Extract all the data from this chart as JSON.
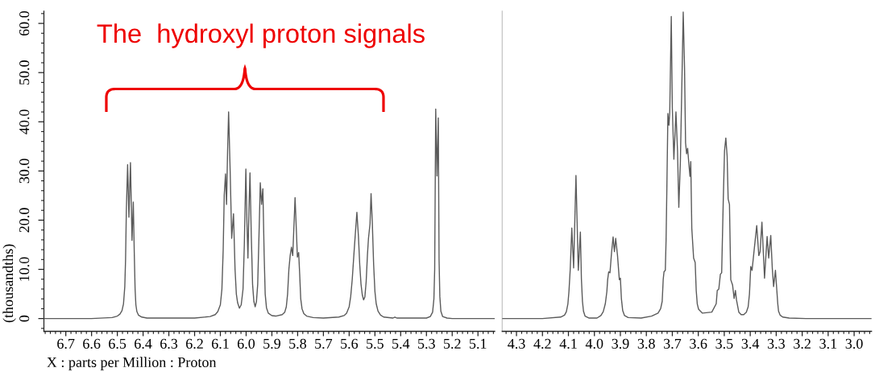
{
  "chart_data": [
    {
      "type": "line",
      "color": "#5a5a5a",
      "line_style": "solid",
      "xlabel": "X : parts per Million : Proton",
      "ylabel": "(thousandths)",
      "xlim": [
        6.785,
        5.035
      ],
      "ylim": [
        -2.6,
        62.5
      ],
      "xticks": [
        {
          "value": 6.78,
          "label": null
        },
        {
          "value": 6.76,
          "label": null
        },
        {
          "value": 6.74,
          "label": null
        },
        {
          "value": 6.72,
          "label": null
        },
        6.7,
        {
          "value": 6.68,
          "label": null
        },
        {
          "value": 6.66,
          "label": null
        },
        {
          "value": 6.64,
          "label": null
        },
        {
          "value": 6.62,
          "label": null
        },
        6.6,
        {
          "value": 6.58,
          "label": null
        },
        {
          "value": 6.56,
          "label": null
        },
        {
          "value": 6.54,
          "label": null
        },
        {
          "value": 6.52,
          "label": null
        },
        6.5,
        {
          "value": 6.48,
          "label": null
        },
        {
          "value": 6.46,
          "label": null
        },
        {
          "value": 6.44,
          "label": null
        },
        {
          "value": 6.42,
          "label": null
        },
        6.4,
        {
          "value": 6.38,
          "label": null
        },
        {
          "value": 6.36,
          "label": null
        },
        {
          "value": 6.34,
          "label": null
        },
        {
          "value": 6.32,
          "label": null
        },
        6.3,
        {
          "value": 6.28,
          "label": null
        },
        {
          "value": 6.26,
          "label": null
        },
        {
          "value": 6.24,
          "label": null
        },
        {
          "value": 6.22,
          "label": null
        },
        6.2,
        {
          "value": 6.18,
          "label": null
        },
        {
          "value": 6.16,
          "label": null
        },
        {
          "value": 6.14,
          "label": null
        },
        {
          "value": 6.12,
          "label": null
        },
        6.1,
        {
          "value": 6.08,
          "label": null
        },
        {
          "value": 6.06,
          "label": null
        },
        {
          "value": 6.04,
          "label": null
        },
        {
          "value": 6.02,
          "label": null
        },
        {
          "value": 6,
          "label": "6.0"
        },
        {
          "value": 5.98,
          "label": null
        },
        {
          "value": 5.96,
          "label": null
        },
        {
          "value": 5.94,
          "label": null
        },
        {
          "value": 5.92,
          "label": null
        },
        5.9,
        {
          "value": 5.88,
          "label": null
        },
        {
          "value": 5.86,
          "label": null
        },
        {
          "value": 5.84,
          "label": null
        },
        {
          "value": 5.82,
          "label": null
        },
        5.8,
        {
          "value": 5.78,
          "label": null
        },
        {
          "value": 5.76,
          "label": null
        },
        {
          "value": 5.74,
          "label": null
        },
        {
          "value": 5.72,
          "label": null
        },
        5.7,
        {
          "value": 5.68,
          "label": null
        },
        {
          "value": 5.66,
          "label": null
        },
        {
          "value": 5.64,
          "label": null
        },
        {
          "value": 5.62,
          "label": null
        },
        5.6,
        {
          "value": 5.58,
          "label": null
        },
        {
          "value": 5.56,
          "label": null
        },
        {
          "value": 5.54,
          "label": null
        },
        {
          "value": 5.52,
          "label": null
        },
        5.5,
        {
          "value": 5.48,
          "label": null
        },
        {
          "value": 5.46,
          "label": null
        },
        {
          "value": 5.44,
          "label": null
        },
        {
          "value": 5.42,
          "label": null
        },
        5.4,
        {
          "value": 5.38,
          "label": null
        },
        {
          "value": 5.36,
          "label": null
        },
        {
          "value": 5.34,
          "label": null
        },
        {
          "value": 5.32,
          "label": null
        },
        5.3,
        {
          "value": 5.28,
          "label": null
        },
        {
          "value": 5.26,
          "label": null
        },
        {
          "value": 5.24,
          "label": null
        },
        {
          "value": 5.22,
          "label": null
        },
        5.2,
        {
          "value": 5.18,
          "label": null
        },
        {
          "value": 5.16,
          "label": null
        },
        {
          "value": 5.14,
          "label": null
        },
        {
          "value": 5.12,
          "label": null
        },
        5.1,
        {
          "value": 5.08,
          "label": null
        },
        {
          "value": 5.06,
          "label": null
        },
        {
          "value": 5.04,
          "label": null
        }
      ],
      "yticks": [
        {
          "value": -2,
          "label": null
        },
        0,
        {
          "value": 2,
          "label": null
        },
        {
          "value": 4,
          "label": null
        },
        {
          "value": 6,
          "label": null
        },
        {
          "value": 8,
          "label": null
        },
        {
          "value": 10,
          "label": "10.0"
        },
        {
          "value": 12,
          "label": null
        },
        {
          "value": 14,
          "label": null
        },
        {
          "value": 16,
          "label": null
        },
        {
          "value": 18,
          "label": null
        },
        {
          "value": 20,
          "label": "20.0"
        },
        {
          "value": 22,
          "label": null
        },
        {
          "value": 24,
          "label": null
        },
        {
          "value": 26,
          "label": null
        },
        {
          "value": 28,
          "label": null
        },
        {
          "value": 30,
          "label": "30.0"
        },
        {
          "value": 32,
          "label": null
        },
        {
          "value": 34,
          "label": null
        },
        {
          "value": 36,
          "label": null
        },
        {
          "value": 38,
          "label": null
        },
        {
          "value": 40,
          "label": "40.0"
        },
        {
          "value": 42,
          "label": null
        },
        {
          "value": 44,
          "label": null
        },
        {
          "value": 46,
          "label": null
        },
        {
          "value": 48,
          "label": null
        },
        {
          "value": 50,
          "label": "50.0"
        },
        {
          "value": 52,
          "label": null
        },
        {
          "value": 54,
          "label": null
        },
        {
          "value": 56,
          "label": null
        },
        {
          "value": 58,
          "label": null
        },
        {
          "value": 60,
          "label": "60.0"
        },
        {
          "value": 62,
          "label": null
        }
      ],
      "annotations": [
        "The  hydroxyl proton signals"
      ],
      "x": [
        6.785,
        6.6,
        6.52,
        6.5,
        6.49,
        6.482,
        6.476,
        6.471,
        6.468,
        6.465,
        6.46,
        6.455,
        6.449,
        6.443,
        6.438,
        6.434,
        6.431,
        6.428,
        6.424,
        6.418,
        6.405,
        6.385,
        6.2,
        6.14,
        6.12,
        6.11,
        6.1,
        6.094,
        6.089,
        6.085,
        6.08,
        6.076,
        6.072,
        6.068,
        6.062,
        6.056,
        6.049,
        6.043,
        6.038,
        6.033,
        6.026,
        6.019,
        6.012,
        6.007,
        6.001,
        5.997,
        5.993,
        5.989,
        5.985,
        5.98,
        5.975,
        5.97,
        5.965,
        5.96,
        5.955,
        5.95,
        5.945,
        5.94,
        5.935,
        5.93,
        5.926,
        5.921,
        5.914,
        5.9,
        5.885,
        5.86,
        5.85,
        5.844,
        5.839,
        5.834,
        5.829,
        5.824,
        5.819,
        5.814,
        5.81,
        5.805,
        5.801,
        5.796,
        5.792,
        5.788,
        5.783,
        5.776,
        5.765,
        5.74,
        5.7,
        5.64,
        5.62,
        5.61,
        5.6,
        5.594,
        5.588,
        5.581,
        5.575,
        5.57,
        5.564,
        5.559,
        5.554,
        5.549,
        5.544,
        5.539,
        5.534,
        5.529,
        5.525,
        5.519,
        5.515,
        5.51,
        5.505,
        5.5,
        5.495,
        5.488,
        5.478,
        5.466,
        5.43,
        5.4225,
        5.415,
        5.3,
        5.285,
        5.276,
        5.271,
        5.268,
        5.264,
        5.259,
        5.254,
        5.251,
        5.248,
        5.244,
        5.237,
        5.22,
        5.2,
        5.035
      ],
      "values": [
        0,
        0,
        0.2,
        0.5,
        0.9,
        1.6,
        3.0,
        6.5,
        12.0,
        22.0,
        31.3,
        20.6,
        31.7,
        15.9,
        23.7,
        12.8,
        6.0,
        2.8,
        1.4,
        0.7,
        0.3,
        0.1,
        0.1,
        0.4,
        0.8,
        1.4,
        2.8,
        6.0,
        14.0,
        25.0,
        29.4,
        23.2,
        34.0,
        42.0,
        30.0,
        16.3,
        21.3,
        10.0,
        5.0,
        3.2,
        2.1,
        2.8,
        6.0,
        15.0,
        30.4,
        20.0,
        12.3,
        22.0,
        29.6,
        17.0,
        7.0,
        3.5,
        2.4,
        3.4,
        7.0,
        17.0,
        27.6,
        23.2,
        26.4,
        13.0,
        5.0,
        2.2,
        1.1,
        0.6,
        0.5,
        0.8,
        1.3,
        2.4,
        5.0,
        10.0,
        12.8,
        14.5,
        12.8,
        19.3,
        24.6,
        18.0,
        12.5,
        13.4,
        8.9,
        4.0,
        2.0,
        1.0,
        0.5,
        0.2,
        0.1,
        0.3,
        0.6,
        1.1,
        2.4,
        4.5,
        8.0,
        13.5,
        18.0,
        21.6,
        16.7,
        11.0,
        7.0,
        4.8,
        3.8,
        4.4,
        7.5,
        13.0,
        16.3,
        19.3,
        25.4,
        19.3,
        11.0,
        5.5,
        3.0,
        1.5,
        0.7,
        0.3,
        0.1,
        0.3,
        0.1,
        0.1,
        0.4,
        1.3,
        4.0,
        10.0,
        42.6,
        29.0,
        40.8,
        12.0,
        4.5,
        1.5,
        0.4,
        0.1,
        0,
        0
      ]
    },
    {
      "type": "line",
      "color": "#5a5a5a",
      "line_style": "solid",
      "tick_labels": "x",
      "xlim": [
        4.355,
        2.933
      ],
      "ylim": [
        -2.6,
        62.5
      ],
      "xticks": [
        {
          "value": 4.34,
          "label": null
        },
        {
          "value": 4.32,
          "label": null
        },
        4.3,
        {
          "value": 4.28,
          "label": null
        },
        {
          "value": 4.26,
          "label": null
        },
        {
          "value": 4.24,
          "label": null
        },
        {
          "value": 4.22,
          "label": null
        },
        4.2,
        {
          "value": 4.18,
          "label": null
        },
        {
          "value": 4.16,
          "label": null
        },
        {
          "value": 4.14,
          "label": null
        },
        {
          "value": 4.12,
          "label": null
        },
        4.1,
        {
          "value": 4.08,
          "label": null
        },
        {
          "value": 4.06,
          "label": null
        },
        {
          "value": 4.04,
          "label": null
        },
        {
          "value": 4.02,
          "label": null
        },
        {
          "value": 4,
          "label": "4.0"
        },
        {
          "value": 3.98,
          "label": null
        },
        {
          "value": 3.96,
          "label": null
        },
        {
          "value": 3.94,
          "label": null
        },
        {
          "value": 3.92,
          "label": null
        },
        3.9,
        {
          "value": 3.88,
          "label": null
        },
        {
          "value": 3.86,
          "label": null
        },
        {
          "value": 3.84,
          "label": null
        },
        {
          "value": 3.82,
          "label": null
        },
        3.8,
        {
          "value": 3.78,
          "label": null
        },
        {
          "value": 3.76,
          "label": null
        },
        {
          "value": 3.74,
          "label": null
        },
        {
          "value": 3.72,
          "label": null
        },
        3.7,
        {
          "value": 3.68,
          "label": null
        },
        {
          "value": 3.66,
          "label": null
        },
        {
          "value": 3.64,
          "label": null
        },
        {
          "value": 3.62,
          "label": null
        },
        3.6,
        {
          "value": 3.58,
          "label": null
        },
        {
          "value": 3.56,
          "label": null
        },
        {
          "value": 3.54,
          "label": null
        },
        {
          "value": 3.52,
          "label": null
        },
        3.5,
        {
          "value": 3.48,
          "label": null
        },
        {
          "value": 3.46,
          "label": null
        },
        {
          "value": 3.44,
          "label": null
        },
        {
          "value": 3.42,
          "label": null
        },
        3.4,
        {
          "value": 3.38,
          "label": null
        },
        {
          "value": 3.36,
          "label": null
        },
        {
          "value": 3.34,
          "label": null
        },
        {
          "value": 3.32,
          "label": null
        },
        3.3,
        {
          "value": 3.28,
          "label": null
        },
        {
          "value": 3.26,
          "label": null
        },
        {
          "value": 3.24,
          "label": null
        },
        {
          "value": 3.22,
          "label": null
        },
        3.2,
        {
          "value": 3.18,
          "label": null
        },
        {
          "value": 3.16,
          "label": null
        },
        {
          "value": 3.14,
          "label": null
        },
        {
          "value": 3.12,
          "label": null
        },
        3.1,
        {
          "value": 3.08,
          "label": null
        },
        {
          "value": 3.06,
          "label": null
        },
        {
          "value": 3.04,
          "label": null
        },
        {
          "value": 3.02,
          "label": null
        },
        {
          "value": 3,
          "label": "3.0"
        },
        {
          "value": 2.98,
          "label": null
        },
        {
          "value": 2.96,
          "label": null
        },
        {
          "value": 2.94,
          "label": null
        }
      ],
      "x": [
        4.355,
        4.2,
        4.13,
        4.115,
        4.108,
        4.102,
        4.098,
        4.093,
        4.087,
        4.08,
        4.071,
        4.062,
        4.054,
        4.05,
        4.046,
        4.042,
        4.036,
        4.02,
        3.99,
        3.975,
        3.966,
        3.958,
        3.952,
        3.949,
        3.945,
        3.94,
        3.934,
        3.928,
        3.923,
        3.918,
        3.911,
        3.904,
        3.9,
        3.896,
        3.891,
        3.884,
        3.87,
        3.82,
        3.78,
        3.755,
        3.745,
        3.739,
        3.735,
        3.732,
        3.727,
        3.724,
        3.721,
        3.717,
        3.713,
        3.71,
        3.704,
        3.7,
        3.694,
        3.686,
        3.68,
        3.675,
        3.669,
        3.663,
        3.658,
        3.653,
        3.649,
        3.645,
        3.641,
        3.637,
        3.632,
        3.629,
        3.625,
        3.618,
        3.612,
        3.608,
        3.604,
        3.599,
        3.584,
        3.548,
        3.531,
        3.527,
        3.521,
        3.515,
        3.51,
        3.504,
        3.499,
        3.494,
        3.489,
        3.485,
        3.48,
        3.475,
        3.468,
        3.462,
        3.457,
        3.453,
        3.444,
        3.435,
        3.425,
        3.415,
        3.408,
        3.403,
        3.398,
        3.393,
        3.384,
        3.375,
        3.367,
        3.362,
        3.355,
        3.349,
        3.345,
        3.335,
        3.329,
        3.321,
        3.315,
        3.31,
        3.303,
        3.298,
        3.294,
        3.291,
        3.285,
        3.275,
        3.25,
        3.186,
        2.933
      ],
      "values": [
        0,
        0,
        0.3,
        0.7,
        1.4,
        3.0,
        5.5,
        10.1,
        18.4,
        10.3,
        29.1,
        9.8,
        17.6,
        8.0,
        3.5,
        1.5,
        0.5,
        0.1,
        0.1,
        0.6,
        1.4,
        3.0,
        5.5,
        7.9,
        9.5,
        9.3,
        13.4,
        16.6,
        13.6,
        16.3,
        12.8,
        7.9,
        8.2,
        4.0,
        1.6,
        0.6,
        0.2,
        0.1,
        0.5,
        1.1,
        2.0,
        3.5,
        8.0,
        9.5,
        9.8,
        16.0,
        26.5,
        41.7,
        39.3,
        41.7,
        61.4,
        42.8,
        32.4,
        42.0,
        34.1,
        22.6,
        31.9,
        48.3,
        62.3,
        51.0,
        35.7,
        33.5,
        34.6,
        31.9,
        28.9,
        31.9,
        18.3,
        12.3,
        11.4,
        5.7,
        3.0,
        1.9,
        1.1,
        1.3,
        3.0,
        5.7,
        6.0,
        9.0,
        9.3,
        23.7,
        34.1,
        36.7,
        33.0,
        24.3,
        23.2,
        7.9,
        6.8,
        4.1,
        5.7,
        3.8,
        1.3,
        0.8,
        0.8,
        1.3,
        2.4,
        5.0,
        10.6,
        9.8,
        14.4,
        18.9,
        12.8,
        13.6,
        19.6,
        12.8,
        8.2,
        16.7,
        12.3,
        16.9,
        10.1,
        6.5,
        9.8,
        6.0,
        3.0,
        1.5,
        0.7,
        0.3,
        0.1,
        0,
        0
      ]
    }
  ]
}
